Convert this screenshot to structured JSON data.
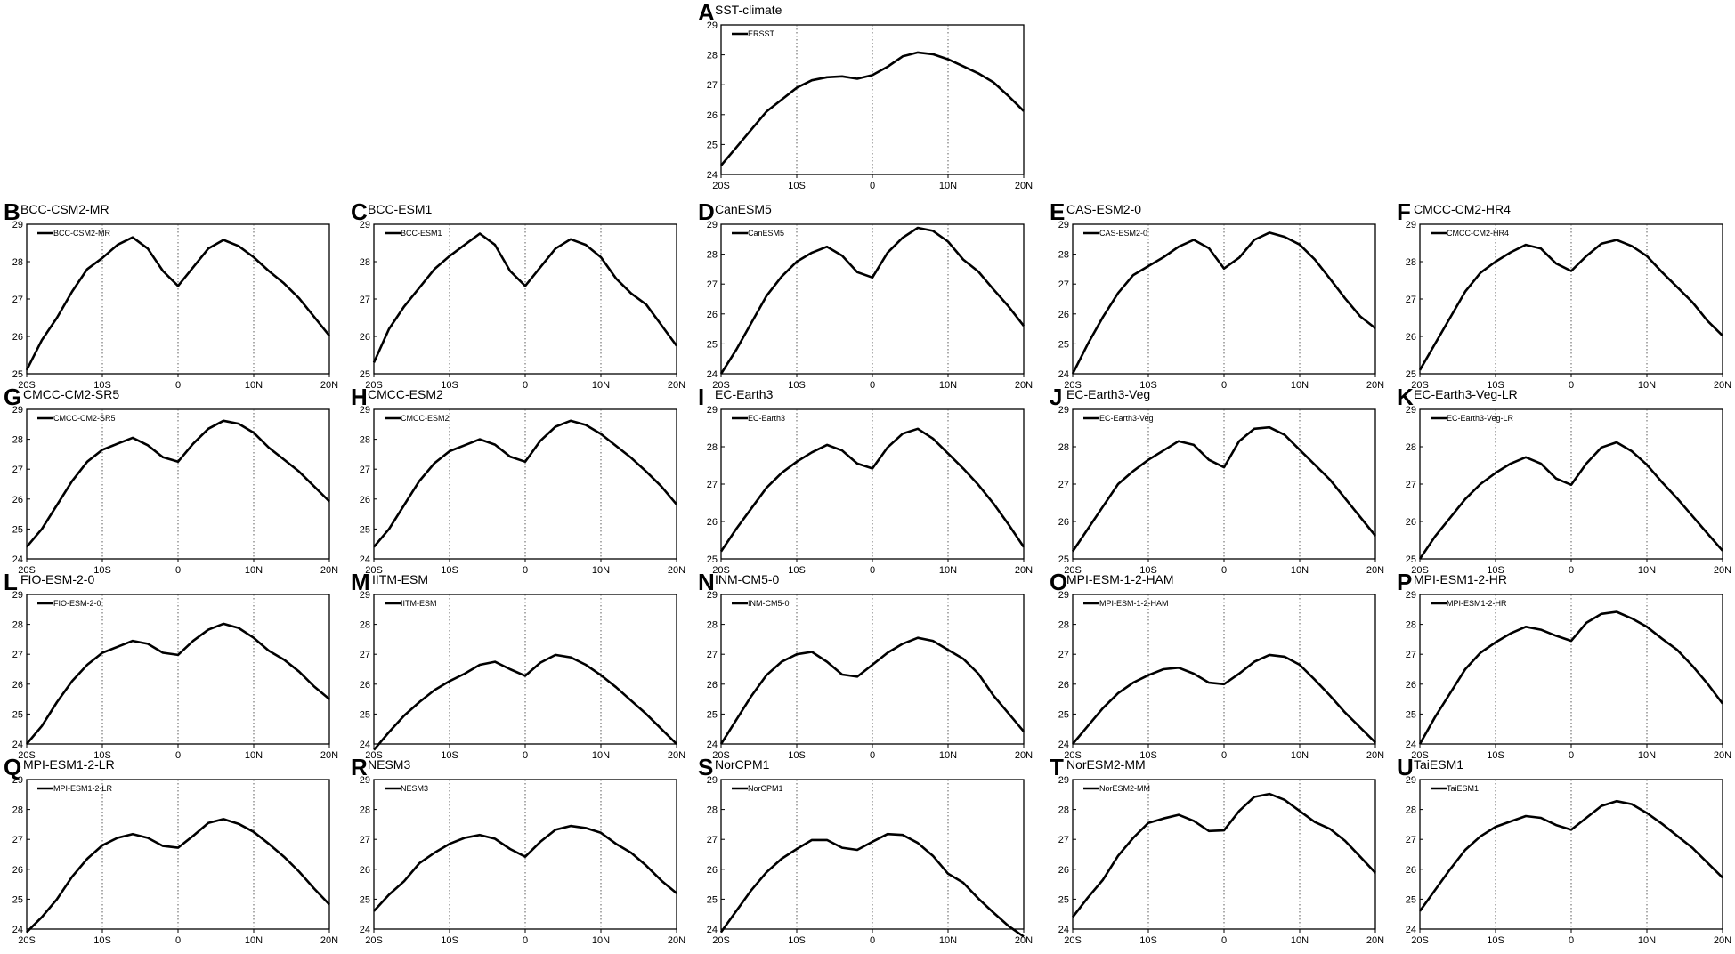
{
  "figure": {
    "x_tick_labels": [
      "20S",
      "10S",
      "0",
      "10N",
      "20N"
    ],
    "y_tick_labels": [
      "24",
      "25",
      "26",
      "27",
      "28",
      "29"
    ],
    "line_color": "#000000",
    "grid": "dotted vertical lines at 10S, 0, 10N",
    "legend_placement": "top-left"
  },
  "chart_data": [
    {
      "letter": "A",
      "title": "SST-climate",
      "legend": "ERSST",
      "type": "line",
      "xlim": [
        -20,
        20
      ],
      "ylim": [
        24,
        29
      ],
      "x": [
        -20,
        -18,
        -16,
        -14,
        -12,
        -10,
        -8,
        -6,
        -4,
        -2,
        0,
        2,
        4,
        6,
        8,
        10,
        12,
        14,
        16,
        18,
        20
      ],
      "values": [
        24.3,
        24.9,
        25.5,
        26.1,
        26.5,
        26.9,
        27.15,
        27.25,
        27.28,
        27.2,
        27.32,
        27.6,
        27.95,
        28.08,
        28.02,
        27.85,
        27.62,
        27.38,
        27.08,
        26.62,
        26.12
      ]
    },
    {
      "letter": "B",
      "title": "BCC-CSM2-MR",
      "legend": "BCC-CSM2-MR",
      "type": "line",
      "xlim": [
        -20,
        20
      ],
      "ylim": [
        25,
        29
      ],
      "x": [
        -20,
        -18,
        -16,
        -14,
        -12,
        -10,
        -8,
        -6,
        -4,
        -2,
        0,
        2,
        4,
        6,
        8,
        10,
        12,
        14,
        16,
        18,
        20
      ],
      "values": [
        25.1,
        25.9,
        26.5,
        27.2,
        27.8,
        28.1,
        28.45,
        28.65,
        28.35,
        27.75,
        27.35,
        27.85,
        28.35,
        28.58,
        28.42,
        28.12,
        27.75,
        27.42,
        27.02,
        26.52,
        26.02
      ]
    },
    {
      "letter": "C",
      "title": "BCC-ESM1",
      "legend": "BCC-ESM1",
      "type": "line",
      "xlim": [
        -20,
        20
      ],
      "ylim": [
        25,
        29
      ],
      "x": [
        -20,
        -18,
        -16,
        -14,
        -12,
        -10,
        -8,
        -6,
        -4,
        -2,
        0,
        2,
        4,
        6,
        8,
        10,
        12,
        14,
        16,
        18,
        20
      ],
      "values": [
        25.3,
        26.2,
        26.8,
        27.3,
        27.8,
        28.15,
        28.45,
        28.75,
        28.45,
        27.75,
        27.35,
        27.85,
        28.35,
        28.6,
        28.45,
        28.12,
        27.55,
        27.15,
        26.85,
        26.3,
        25.75
      ]
    },
    {
      "letter": "D",
      "title": "CanESM5",
      "legend": "CanESM5",
      "type": "line",
      "xlim": [
        -20,
        20
      ],
      "ylim": [
        24,
        29
      ],
      "x": [
        -20,
        -18,
        -16,
        -14,
        -12,
        -10,
        -8,
        -6,
        -4,
        -2,
        0,
        2,
        4,
        6,
        8,
        10,
        12,
        14,
        16,
        18,
        20
      ],
      "values": [
        24.0,
        24.8,
        25.7,
        26.6,
        27.25,
        27.75,
        28.05,
        28.25,
        27.95,
        27.4,
        27.22,
        28.05,
        28.55,
        28.88,
        28.78,
        28.42,
        27.82,
        27.42,
        26.82,
        26.25,
        25.6
      ]
    },
    {
      "letter": "E",
      "title": "CAS-ESM2-0",
      "legend": "CAS-ESM2-0",
      "type": "line",
      "xlim": [
        -20,
        20
      ],
      "ylim": [
        24,
        29
      ],
      "x": [
        -20,
        -18,
        -16,
        -14,
        -12,
        -10,
        -8,
        -6,
        -4,
        -2,
        0,
        2,
        4,
        6,
        8,
        10,
        12,
        14,
        16,
        18,
        20
      ],
      "values": [
        24.0,
        25.0,
        25.9,
        26.7,
        27.3,
        27.6,
        27.9,
        28.25,
        28.48,
        28.2,
        27.52,
        27.88,
        28.48,
        28.72,
        28.58,
        28.32,
        27.82,
        27.18,
        26.52,
        25.92,
        25.52
      ]
    },
    {
      "letter": "F",
      "title": "CMCC-CM2-HR4",
      "legend": "CMCC-CM2-HR4",
      "type": "line",
      "xlim": [
        -20,
        20
      ],
      "ylim": [
        25,
        29
      ],
      "x": [
        -20,
        -18,
        -16,
        -14,
        -12,
        -10,
        -8,
        -6,
        -4,
        -2,
        0,
        2,
        4,
        6,
        8,
        10,
        12,
        14,
        16,
        18,
        20
      ],
      "values": [
        25.1,
        25.8,
        26.5,
        27.2,
        27.7,
        28.0,
        28.25,
        28.45,
        28.35,
        27.95,
        27.75,
        28.15,
        28.48,
        28.58,
        28.42,
        28.15,
        27.72,
        27.32,
        26.92,
        26.42,
        26.02
      ]
    },
    {
      "letter": "G",
      "title": "CMCC-CM2-SR5",
      "legend": "CMCC-CM2-SR5",
      "type": "line",
      "xlim": [
        -20,
        20
      ],
      "ylim": [
        24,
        29
      ],
      "x": [
        -20,
        -18,
        -16,
        -14,
        -12,
        -10,
        -8,
        -6,
        -4,
        -2,
        0,
        2,
        4,
        6,
        8,
        10,
        12,
        14,
        16,
        18,
        20
      ],
      "values": [
        24.4,
        25.0,
        25.8,
        26.6,
        27.25,
        27.65,
        27.85,
        28.05,
        27.8,
        27.4,
        27.25,
        27.85,
        28.35,
        28.62,
        28.52,
        28.22,
        27.72,
        27.32,
        26.92,
        26.42,
        25.92
      ]
    },
    {
      "letter": "H",
      "title": "CMCC-ESM2",
      "legend": "CMCC-ESM2",
      "type": "line",
      "xlim": [
        -20,
        20
      ],
      "ylim": [
        24,
        29
      ],
      "x": [
        -20,
        -18,
        -16,
        -14,
        -12,
        -10,
        -8,
        -6,
        -4,
        -2,
        0,
        2,
        4,
        6,
        8,
        10,
        12,
        14,
        16,
        18,
        20
      ],
      "values": [
        24.4,
        25.0,
        25.8,
        26.6,
        27.2,
        27.6,
        27.8,
        28.0,
        27.82,
        27.42,
        27.25,
        27.95,
        28.42,
        28.62,
        28.48,
        28.18,
        27.78,
        27.38,
        26.92,
        26.42,
        25.82
      ]
    },
    {
      "letter": "I",
      "title": "EC-Earth3",
      "legend": "EC-Earth3",
      "type": "line",
      "xlim": [
        -20,
        20
      ],
      "ylim": [
        25,
        29
      ],
      "x": [
        -20,
        -18,
        -16,
        -14,
        -12,
        -10,
        -8,
        -6,
        -4,
        -2,
        0,
        2,
        4,
        6,
        8,
        10,
        12,
        14,
        16,
        18,
        20
      ],
      "values": [
        25.2,
        25.8,
        26.35,
        26.9,
        27.3,
        27.6,
        27.85,
        28.05,
        27.9,
        27.55,
        27.42,
        27.98,
        28.35,
        28.48,
        28.22,
        27.82,
        27.42,
        26.98,
        26.48,
        25.92,
        25.32
      ]
    },
    {
      "letter": "J",
      "title": "EC-Earth3-Veg",
      "legend": "EC-Earth3-Veg",
      "type": "line",
      "xlim": [
        -20,
        20
      ],
      "ylim": [
        25,
        29
      ],
      "x": [
        -20,
        -18,
        -16,
        -14,
        -12,
        -10,
        -8,
        -6,
        -4,
        -2,
        0,
        2,
        4,
        6,
        8,
        10,
        12,
        14,
        16,
        18,
        20
      ],
      "values": [
        25.2,
        25.8,
        26.4,
        27.0,
        27.35,
        27.65,
        27.9,
        28.15,
        28.05,
        27.65,
        27.45,
        28.15,
        28.48,
        28.52,
        28.32,
        27.92,
        27.52,
        27.12,
        26.62,
        26.12,
        25.62
      ]
    },
    {
      "letter": "K",
      "title": "EC-Earth3-Veg-LR",
      "legend": "EC-Earth3-Veg-LR",
      "type": "line",
      "xlim": [
        -20,
        20
      ],
      "ylim": [
        25,
        29
      ],
      "x": [
        -20,
        -18,
        -16,
        -14,
        -12,
        -10,
        -8,
        -6,
        -4,
        -2,
        0,
        2,
        4,
        6,
        8,
        10,
        12,
        14,
        16,
        18,
        20
      ],
      "values": [
        25.0,
        25.6,
        26.1,
        26.6,
        27.0,
        27.3,
        27.55,
        27.72,
        27.55,
        27.15,
        26.98,
        27.55,
        27.98,
        28.12,
        27.88,
        27.52,
        27.05,
        26.62,
        26.15,
        25.68,
        25.22
      ]
    },
    {
      "letter": "L",
      "title": "FIO-ESM-2-0",
      "legend": "FIO-ESM-2-0",
      "type": "line",
      "xlim": [
        -20,
        20
      ],
      "ylim": [
        24,
        29
      ],
      "x": [
        -20,
        -18,
        -16,
        -14,
        -12,
        -10,
        -8,
        -6,
        -4,
        -2,
        0,
        2,
        4,
        6,
        8,
        10,
        12,
        14,
        16,
        18,
        20
      ],
      "values": [
        24.0,
        24.6,
        25.4,
        26.1,
        26.65,
        27.05,
        27.25,
        27.45,
        27.35,
        27.05,
        26.98,
        27.45,
        27.82,
        28.02,
        27.88,
        27.55,
        27.12,
        26.82,
        26.42,
        25.92,
        25.5
      ]
    },
    {
      "letter": "M",
      "title": "IITM-ESM",
      "legend": "IITM-ESM",
      "type": "line",
      "xlim": [
        -20,
        20
      ],
      "ylim": [
        24,
        29
      ],
      "x": [
        -20,
        -18,
        -16,
        -14,
        -12,
        -10,
        -8,
        -6,
        -4,
        -2,
        0,
        2,
        4,
        6,
        8,
        10,
        12,
        14,
        16,
        18,
        20
      ],
      "values": [
        23.8,
        24.4,
        24.95,
        25.4,
        25.8,
        26.1,
        26.35,
        26.65,
        26.75,
        26.5,
        26.28,
        26.72,
        26.98,
        26.9,
        26.65,
        26.3,
        25.9,
        25.45,
        25.0,
        24.5,
        24.0
      ]
    },
    {
      "letter": "N",
      "title": "INM-CM5-0",
      "legend": "INM-CM5-0",
      "type": "line",
      "xlim": [
        -20,
        20
      ],
      "ylim": [
        24,
        29
      ],
      "x": [
        -20,
        -18,
        -16,
        -14,
        -12,
        -10,
        -8,
        -6,
        -4,
        -2,
        0,
        2,
        4,
        6,
        8,
        10,
        12,
        14,
        16,
        18,
        20
      ],
      "values": [
        24.0,
        24.8,
        25.6,
        26.3,
        26.75,
        27.0,
        27.08,
        26.75,
        26.32,
        26.25,
        26.65,
        27.05,
        27.35,
        27.55,
        27.45,
        27.15,
        26.85,
        26.35,
        25.62,
        25.02,
        24.42
      ]
    },
    {
      "letter": "O",
      "title": "MPI-ESM-1-2-HAM",
      "legend": "MPI-ESM-1-2-HAM",
      "type": "line",
      "xlim": [
        -20,
        20
      ],
      "ylim": [
        24,
        29
      ],
      "x": [
        -20,
        -18,
        -16,
        -14,
        -12,
        -10,
        -8,
        -6,
        -4,
        -2,
        0,
        2,
        4,
        6,
        8,
        10,
        12,
        14,
        16,
        18,
        20
      ],
      "values": [
        24.0,
        24.6,
        25.2,
        25.7,
        26.05,
        26.3,
        26.5,
        26.55,
        26.35,
        26.05,
        26.0,
        26.35,
        26.75,
        26.98,
        26.92,
        26.65,
        26.15,
        25.62,
        25.05,
        24.55,
        24.05
      ]
    },
    {
      "letter": "P",
      "title": "MPI-ESM1-2-HR",
      "legend": "MPI-ESM1-2-HR",
      "type": "line",
      "xlim": [
        -20,
        20
      ],
      "ylim": [
        24,
        29
      ],
      "x": [
        -20,
        -18,
        -16,
        -14,
        -12,
        -10,
        -8,
        -6,
        -4,
        -2,
        0,
        2,
        4,
        6,
        8,
        10,
        12,
        14,
        16,
        18,
        20
      ],
      "values": [
        24.0,
        24.9,
        25.7,
        26.5,
        27.05,
        27.4,
        27.7,
        27.92,
        27.82,
        27.62,
        27.45,
        28.05,
        28.35,
        28.42,
        28.2,
        27.92,
        27.52,
        27.15,
        26.62,
        26.02,
        25.35
      ]
    },
    {
      "letter": "Q",
      "title": "MPI-ESM1-2-LR",
      "legend": "MPI-ESM1-2-LR",
      "type": "line",
      "xlim": [
        -20,
        20
      ],
      "ylim": [
        24,
        29
      ],
      "x": [
        -20,
        -18,
        -16,
        -14,
        -12,
        -10,
        -8,
        -6,
        -4,
        -2,
        0,
        2,
        4,
        6,
        8,
        10,
        12,
        14,
        16,
        18,
        20
      ],
      "values": [
        23.9,
        24.4,
        25.0,
        25.75,
        26.35,
        26.8,
        27.05,
        27.18,
        27.05,
        26.78,
        26.72,
        27.12,
        27.55,
        27.68,
        27.52,
        27.25,
        26.85,
        26.42,
        25.92,
        25.35,
        24.82
      ]
    },
    {
      "letter": "R",
      "title": "NESM3",
      "legend": "NESM3",
      "type": "line",
      "xlim": [
        -20,
        20
      ],
      "ylim": [
        24,
        29
      ],
      "x": [
        -20,
        -18,
        -16,
        -14,
        -12,
        -10,
        -8,
        -6,
        -4,
        -2,
        0,
        2,
        4,
        6,
        8,
        10,
        12,
        14,
        16,
        18,
        20
      ],
      "values": [
        24.6,
        25.15,
        25.6,
        26.2,
        26.55,
        26.85,
        27.05,
        27.15,
        27.02,
        26.68,
        26.42,
        26.92,
        27.32,
        27.45,
        27.38,
        27.22,
        26.85,
        26.55,
        26.12,
        25.62,
        25.2
      ]
    },
    {
      "letter": "S",
      "title": "NorCPM1",
      "legend": "NorCPM1",
      "type": "line",
      "xlim": [
        -20,
        20
      ],
      "ylim": [
        24,
        29
      ],
      "x": [
        -20,
        -18,
        -16,
        -14,
        -12,
        -10,
        -8,
        -6,
        -4,
        -2,
        0,
        2,
        4,
        6,
        8,
        10,
        12,
        14,
        16,
        18,
        20
      ],
      "values": [
        23.9,
        24.6,
        25.3,
        25.9,
        26.35,
        26.68,
        26.98,
        26.98,
        26.72,
        26.65,
        26.92,
        27.18,
        27.15,
        26.88,
        26.45,
        25.85,
        25.55,
        25.02,
        24.55,
        24.1,
        23.75
      ]
    },
    {
      "letter": "T",
      "title": "NorESM2-MM",
      "legend": "NorESM2-MM",
      "type": "line",
      "xlim": [
        -20,
        20
      ],
      "ylim": [
        24,
        29
      ],
      "x": [
        -20,
        -18,
        -16,
        -14,
        -12,
        -10,
        -8,
        -6,
        -4,
        -2,
        0,
        2,
        4,
        6,
        8,
        10,
        12,
        14,
        16,
        18,
        20
      ],
      "values": [
        24.4,
        25.05,
        25.65,
        26.45,
        27.05,
        27.55,
        27.7,
        27.82,
        27.62,
        27.28,
        27.3,
        27.95,
        28.42,
        28.52,
        28.32,
        27.95,
        27.58,
        27.35,
        26.95,
        26.42,
        25.88
      ]
    },
    {
      "letter": "U",
      "title": "TaiESM1",
      "legend": "TaiESM1",
      "type": "line",
      "xlim": [
        -20,
        20
      ],
      "ylim": [
        24,
        29
      ],
      "x": [
        -20,
        -18,
        -16,
        -14,
        -12,
        -10,
        -8,
        -6,
        -4,
        -2,
        0,
        2,
        4,
        6,
        8,
        10,
        12,
        14,
        16,
        18,
        20
      ],
      "values": [
        24.6,
        25.3,
        26.0,
        26.65,
        27.1,
        27.42,
        27.6,
        27.78,
        27.72,
        27.48,
        27.32,
        27.72,
        28.12,
        28.28,
        28.18,
        27.88,
        27.52,
        27.12,
        26.72,
        26.22,
        25.72
      ]
    }
  ]
}
